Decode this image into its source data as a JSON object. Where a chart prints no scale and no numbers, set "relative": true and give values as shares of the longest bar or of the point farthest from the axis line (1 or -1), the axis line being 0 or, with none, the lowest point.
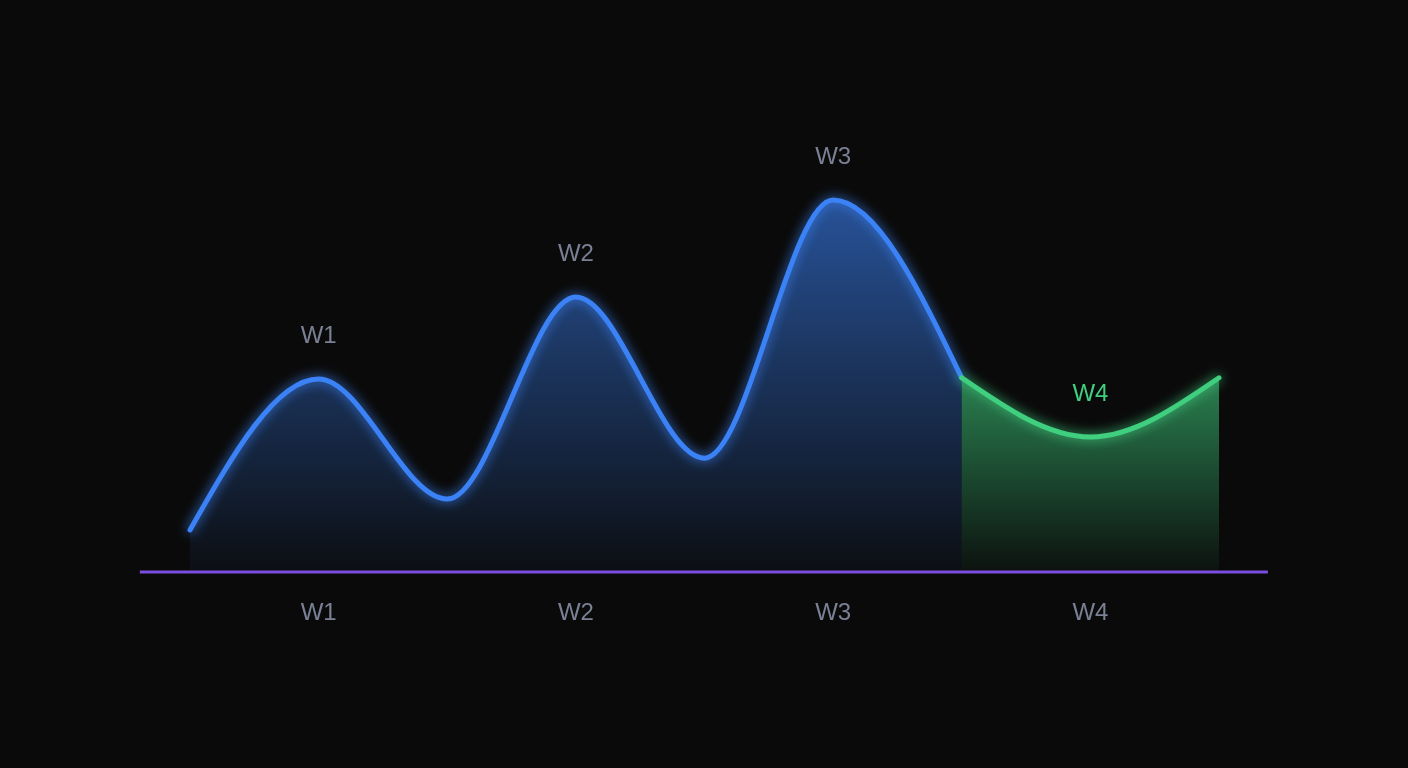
{
  "chart_data": {
    "type": "area",
    "relative": true,
    "categories": [
      null,
      "W1",
      null,
      "W2",
      null,
      "W3",
      null,
      "W4",
      null
    ],
    "series": [
      {
        "color": "#3b82f6",
        "values": [
          0.113,
          0.519,
          0.196,
          0.739,
          0.306,
          1,
          0.522,
          null,
          null
        ]
      },
      {
        "color": "#3fcf7f",
        "values": [
          null,
          null,
          null,
          null,
          null,
          null,
          0.522,
          0.363,
          0.522
        ]
      }
    ],
    "annotations": [
      {
        "text": "W1",
        "x": "W1",
        "y": 0.519
      },
      {
        "text": "W2",
        "x": "W2",
        "y": 0.739
      },
      {
        "text": "W3",
        "x": "W3",
        "y": 1
      },
      {
        "text": "W4",
        "x": "W4",
        "y": 0.363
      }
    ]
  }
}
